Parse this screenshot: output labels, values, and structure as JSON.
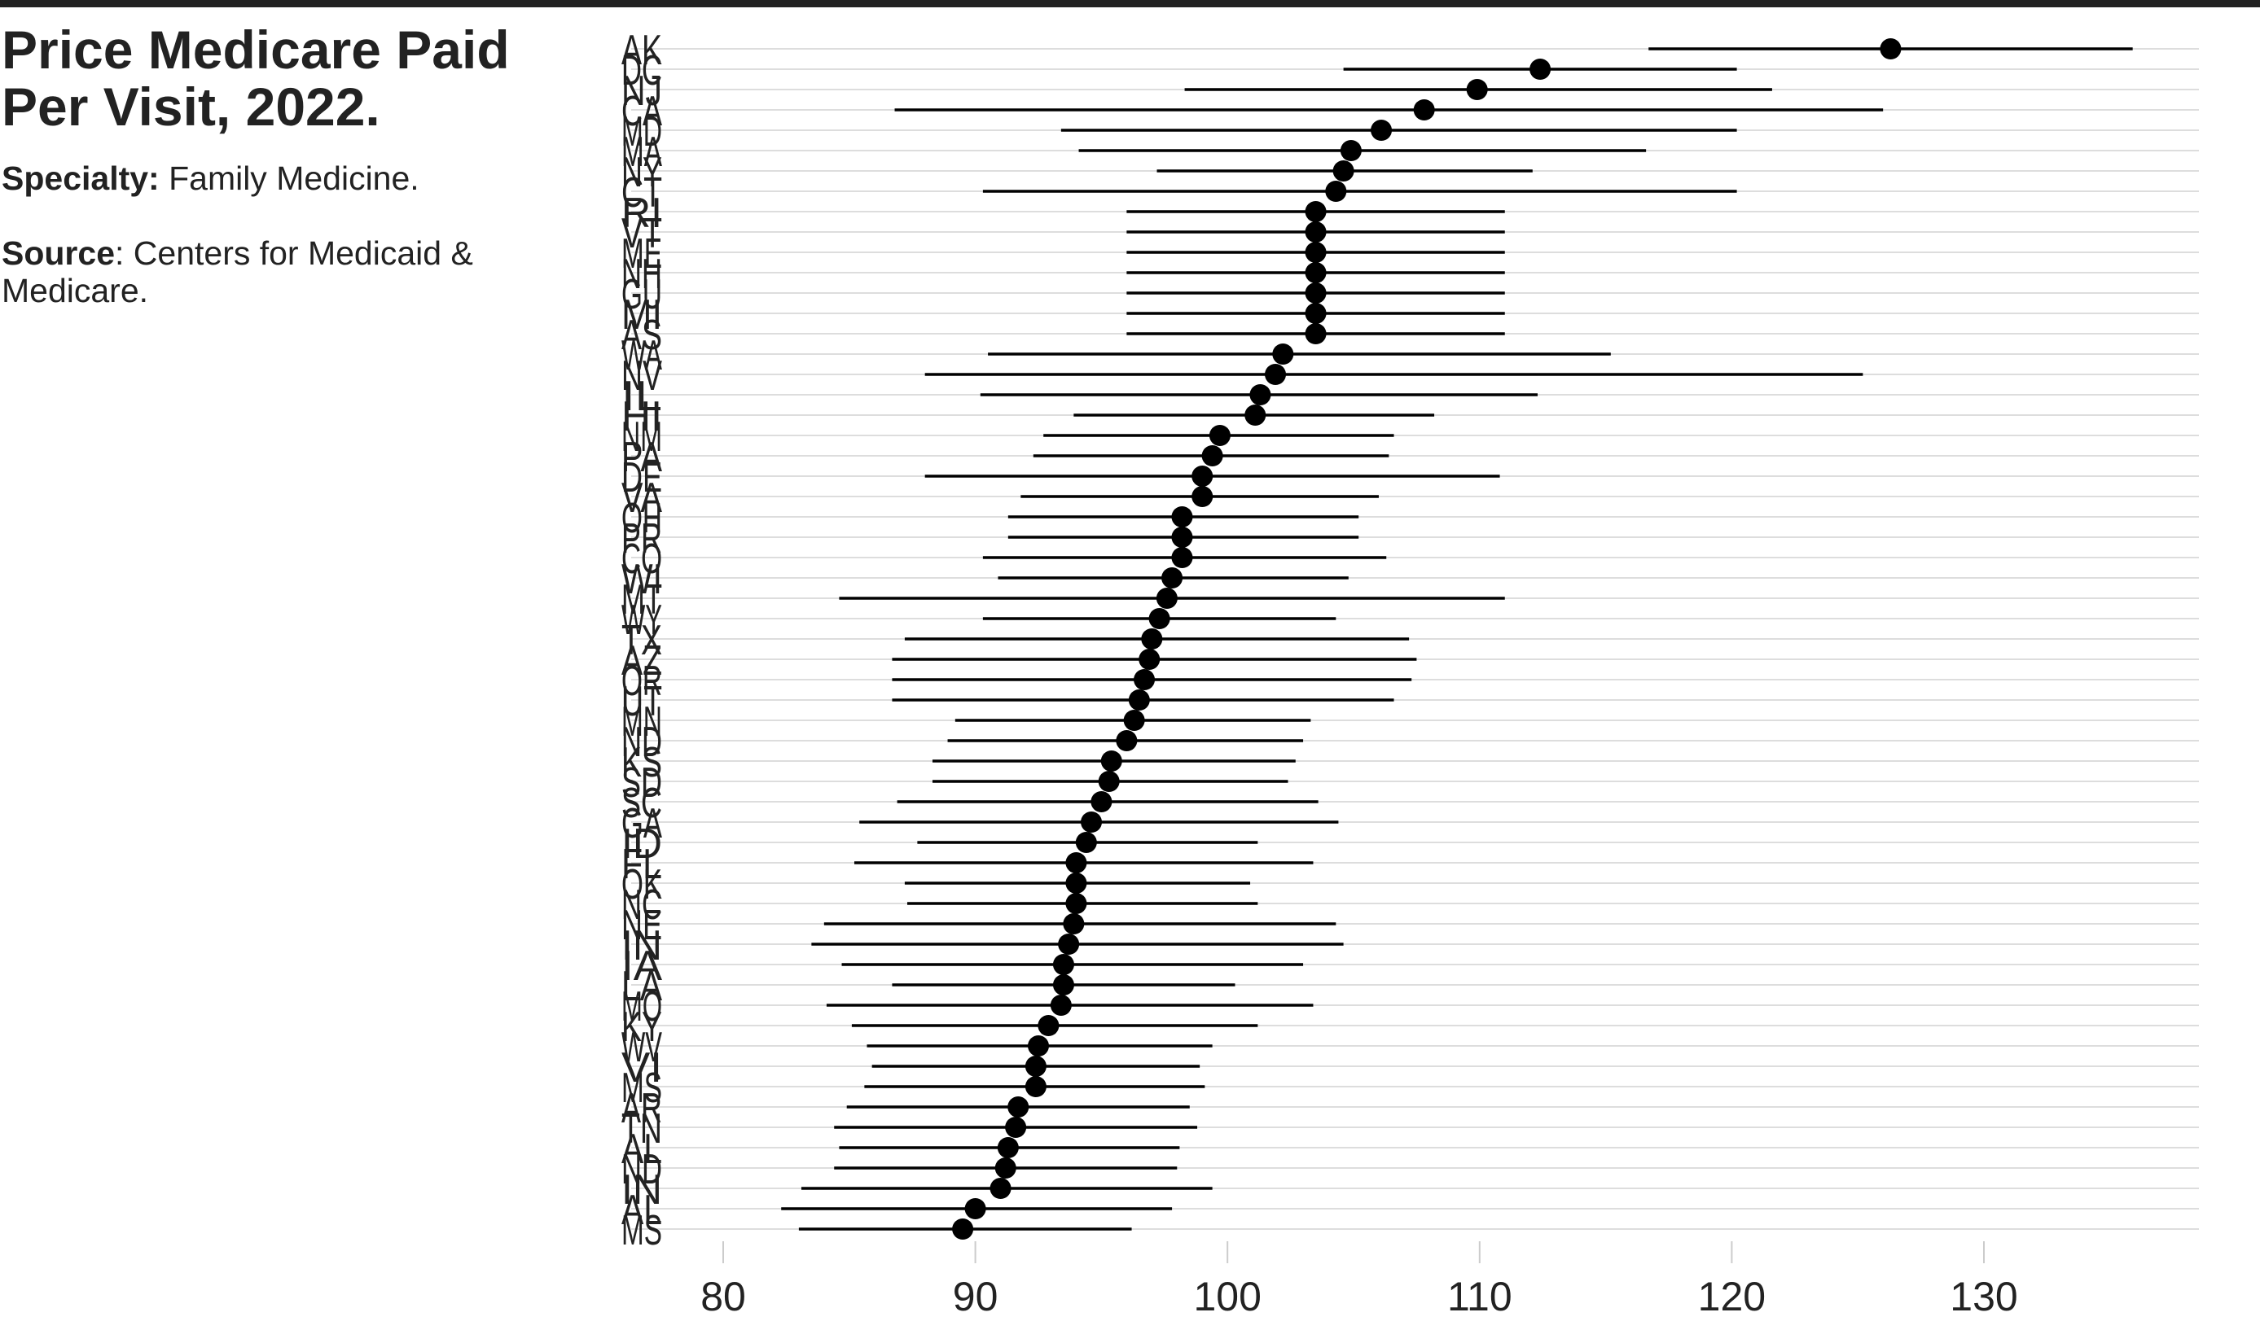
{
  "header": {
    "title": "Price Medicare Paid Per Visit, 2022.",
    "specialty_label": "Specialty:",
    "specialty_value": " Family Medicine.",
    "source_label": "Source",
    "source_value": ": Centers for Medicaid & Medicare."
  },
  "chart_data": {
    "type": "dot-range",
    "title": "Price Medicare Paid Per Visit, 2022.",
    "xlabel": "",
    "ylabel": "",
    "xlim": [
      77,
      137.5
    ],
    "x_ticks": [
      80,
      90,
      100,
      110,
      120,
      130
    ],
    "grid": "horizontal row lines",
    "point_color": "#000000",
    "grid_color": "#dddddd",
    "rows": [
      {
        "state": "AK",
        "value": 126.3,
        "low": 116.7,
        "high": 135.9
      },
      {
        "state": "DC",
        "value": 112.4,
        "low": 104.6,
        "high": 120.2
      },
      {
        "state": "NJ",
        "value": 109.9,
        "low": 98.3,
        "high": 121.6
      },
      {
        "state": "CA",
        "value": 107.8,
        "low": 86.8,
        "high": 126.0
      },
      {
        "state": "MD",
        "value": 106.1,
        "low": 93.4,
        "high": 120.2
      },
      {
        "state": "MA",
        "value": 104.9,
        "low": 94.1,
        "high": 116.6
      },
      {
        "state": "NY",
        "value": 104.6,
        "low": 97.2,
        "high": 112.1
      },
      {
        "state": "CT",
        "value": 104.3,
        "low": 90.3,
        "high": 120.2
      },
      {
        "state": "RI",
        "value": 103.5,
        "low": 96.0,
        "high": 111.0
      },
      {
        "state": "VT",
        "value": 103.5,
        "low": 96.0,
        "high": 111.0
      },
      {
        "state": "ME",
        "value": 103.5,
        "low": 96.0,
        "high": 111.0
      },
      {
        "state": "NH",
        "value": 103.5,
        "low": 96.0,
        "high": 111.0
      },
      {
        "state": "GU",
        "value": 103.5,
        "low": 96.0,
        "high": 111.0
      },
      {
        "state": "MI",
        "value": 103.5,
        "low": 96.0,
        "high": 111.0
      },
      {
        "state": "AS",
        "value": 103.5,
        "low": 96.0,
        "high": 111.0
      },
      {
        "state": "WA",
        "value": 102.2,
        "low": 90.5,
        "high": 115.2
      },
      {
        "state": "NV",
        "value": 101.9,
        "low": 88.0,
        "high": 125.2
      },
      {
        "state": "IL",
        "value": 101.3,
        "low": 90.2,
        "high": 112.3
      },
      {
        "state": "HI",
        "value": 101.1,
        "low": 93.9,
        "high": 108.2
      },
      {
        "state": "NM",
        "value": 99.7,
        "low": 92.7,
        "high": 106.6
      },
      {
        "state": "PA",
        "value": 99.4,
        "low": 92.3,
        "high": 106.4
      },
      {
        "state": "DE",
        "value": 99.0,
        "low": 88.0,
        "high": 110.8
      },
      {
        "state": "VA",
        "value": 99.0,
        "low": 91.8,
        "high": 106.0
      },
      {
        "state": "OH",
        "value": 98.2,
        "low": 91.3,
        "high": 105.2
      },
      {
        "state": "PR",
        "value": 98.2,
        "low": 91.3,
        "high": 105.2
      },
      {
        "state": "CO",
        "value": 98.2,
        "low": 90.3,
        "high": 106.3
      },
      {
        "state": "WI",
        "value": 97.8,
        "low": 90.9,
        "high": 104.8
      },
      {
        "state": "MT",
        "value": 97.6,
        "low": 84.6,
        "high": 111.0
      },
      {
        "state": "WY",
        "value": 97.3,
        "low": 90.3,
        "high": 104.3
      },
      {
        "state": "TX",
        "value": 97.0,
        "low": 87.2,
        "high": 107.2
      },
      {
        "state": "AZ",
        "value": 96.9,
        "low": 86.7,
        "high": 107.5
      },
      {
        "state": "OR",
        "value": 96.7,
        "low": 86.7,
        "high": 107.3
      },
      {
        "state": "UT",
        "value": 96.5,
        "low": 86.7,
        "high": 106.6
      },
      {
        "state": "MN",
        "value": 96.3,
        "low": 89.2,
        "high": 103.3
      },
      {
        "state": "ND",
        "value": 96.0,
        "low": 88.9,
        "high": 103.0
      },
      {
        "state": "KS",
        "value": 95.4,
        "low": 88.3,
        "high": 102.7
      },
      {
        "state": "SD",
        "value": 95.3,
        "low": 88.3,
        "high": 102.4
      },
      {
        "state": "SC",
        "value": 95.0,
        "low": 86.9,
        "high": 103.6
      },
      {
        "state": "GA",
        "value": 94.6,
        "low": 85.4,
        "high": 104.4
      },
      {
        "state": "ID",
        "value": 94.4,
        "low": 87.7,
        "high": 101.2
      },
      {
        "state": "FL",
        "value": 94.0,
        "low": 85.2,
        "high": 103.4
      },
      {
        "state": "OK",
        "value": 94.0,
        "low": 87.2,
        "high": 100.9
      },
      {
        "state": "NC",
        "value": 94.0,
        "low": 87.3,
        "high": 101.2
      },
      {
        "state": "NE",
        "value": 93.9,
        "low": 84.0,
        "high": 104.3
      },
      {
        "state": "IN",
        "value": 93.7,
        "low": 83.5,
        "high": 104.6
      },
      {
        "state": "IA",
        "value": 93.5,
        "low": 84.7,
        "high": 103.0
      },
      {
        "state": "LA",
        "value": 93.5,
        "low": 86.7,
        "high": 100.3
      },
      {
        "state": "MO",
        "value": 93.4,
        "low": 84.1,
        "high": 103.4
      },
      {
        "state": "KY",
        "value": 92.9,
        "low": 85.1,
        "high": 101.2
      },
      {
        "state": "WV",
        "value": 92.5,
        "low": 85.7,
        "high": 99.4
      },
      {
        "state": "VI",
        "value": 92.4,
        "low": 85.9,
        "high": 98.9
      },
      {
        "state": "MS",
        "value": 92.4,
        "low": 85.6,
        "high": 99.1
      },
      {
        "state": "AR",
        "value": 91.7,
        "low": 84.9,
        "high": 98.5
      },
      {
        "state": "TN",
        "value": 91.6,
        "low": 84.4,
        "high": 98.8
      },
      {
        "state": "AL",
        "value": 91.3,
        "low": 84.6,
        "high": 98.1
      },
      {
        "state": "ND",
        "value": 91.2,
        "low": 84.4,
        "high": 98.0
      },
      {
        "state": "IN",
        "value": 91.0,
        "low": 83.1,
        "high": 99.4
      },
      {
        "state": "AL",
        "value": 90.0,
        "low": 82.3,
        "high": 97.8
      },
      {
        "state": "MS",
        "value": 89.5,
        "low": 83.0,
        "high": 96.2
      }
    ]
  }
}
